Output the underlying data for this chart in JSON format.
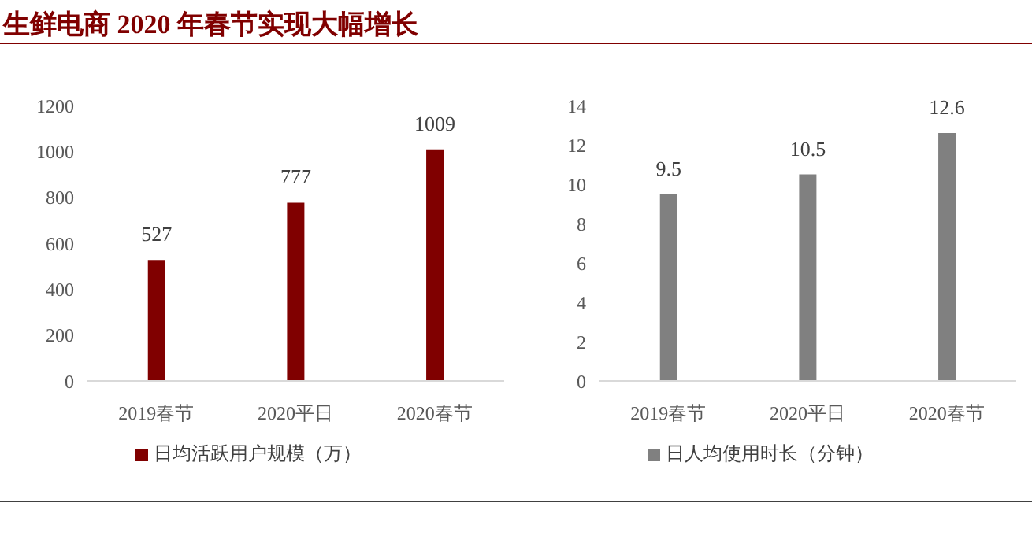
{
  "chart_data": [
    {
      "type": "bar",
      "title": "生鲜电商 2020 年春节实现大幅增长",
      "categories": [
        "2019春节",
        "2020平日",
        "2020春节"
      ],
      "series": [
        {
          "name": "日均活跃用户规模（万）",
          "color": "#800000",
          "values": [
            527,
            777,
            1009
          ]
        }
      ],
      "ylim": [
        0,
        1200
      ],
      "yticks": [
        0,
        200,
        400,
        600,
        800,
        1000,
        1200
      ],
      "grid": false,
      "legend": "bottom",
      "data_labels": true
    },
    {
      "type": "bar",
      "categories": [
        "2019春节",
        "2020平日",
        "2020春节"
      ],
      "series": [
        {
          "name": "日人均使用时长（分钟）",
          "color": "#808080",
          "values": [
            9.5,
            10.5,
            12.6
          ]
        }
      ],
      "ylim": [
        0,
        14
      ],
      "yticks": [
        0,
        2,
        4,
        6,
        8,
        10,
        12,
        14
      ],
      "grid": false,
      "legend": "bottom",
      "data_labels": true
    }
  ]
}
